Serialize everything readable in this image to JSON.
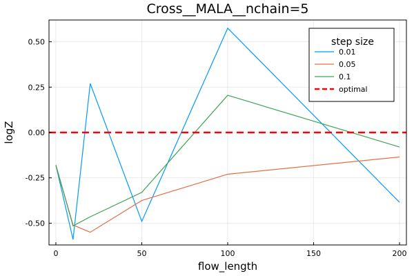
{
  "chart_data": {
    "type": "line",
    "title": "Cross__MALA__nchain=5",
    "xlabel": "flow_length",
    "ylabel": "logZ",
    "xlim": [
      -4,
      204
    ],
    "ylim": [
      -0.62,
      0.62
    ],
    "x_ticks": [
      0,
      50,
      100,
      150,
      200
    ],
    "x_tick_labels": [
      "0",
      "50",
      "100",
      "150",
      "200"
    ],
    "y_ticks": [
      -0.5,
      -0.25,
      0,
      0.25,
      0.5
    ],
    "y_tick_labels": [
      "-0.50",
      "-0.25",
      "0.00",
      "0.25",
      "0.50"
    ],
    "grid": true,
    "legend": {
      "title": "step size",
      "placement": "top-right"
    },
    "series": [
      {
        "name": "0.01",
        "color": "#009AFA",
        "dash": "solid",
        "x": [
          0,
          10,
          20,
          50,
          100,
          200
        ],
        "y": [
          -0.18,
          -0.59,
          0.27,
          -0.49,
          0.575,
          -0.385
        ]
      },
      {
        "name": "0.05",
        "color": "#E36F47",
        "dash": "solid",
        "x": [
          0,
          10,
          20,
          50,
          100,
          200
        ],
        "y": [
          -0.18,
          -0.51,
          -0.55,
          -0.375,
          -0.23,
          -0.135
        ]
      },
      {
        "name": "0.1",
        "color": "#3EA44E",
        "dash": "solid",
        "x": [
          0,
          10,
          20,
          50,
          100,
          200
        ],
        "y": [
          -0.18,
          -0.515,
          -0.465,
          -0.33,
          0.205,
          -0.08
        ]
      },
      {
        "name": "optimal",
        "color": "#FF0000",
        "dash": "dashed",
        "hline": 0
      }
    ]
  }
}
